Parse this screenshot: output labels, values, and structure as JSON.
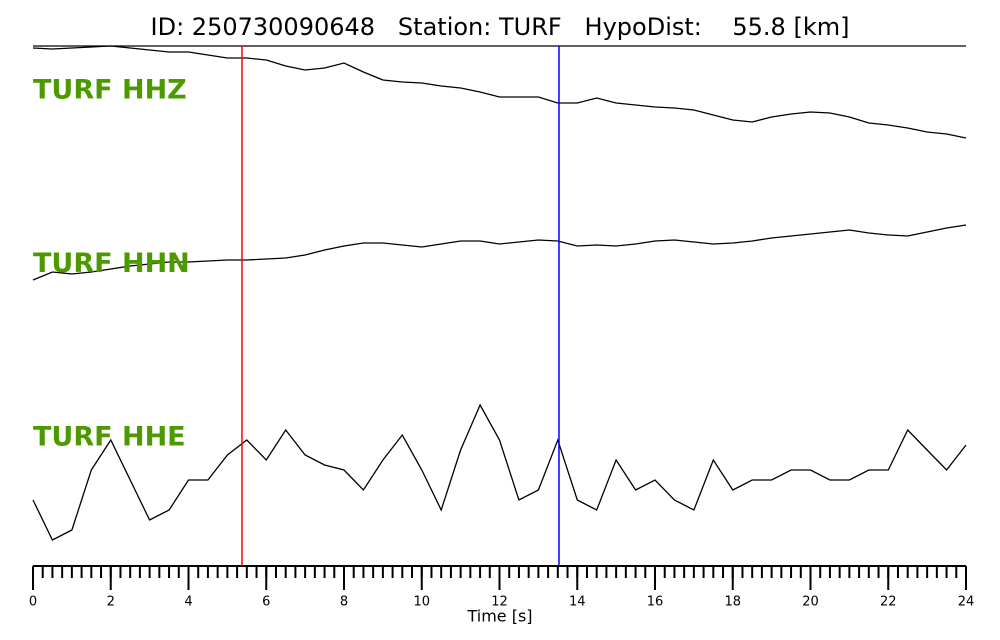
{
  "chart_data": {
    "type": "line",
    "title": "ID: 250730090648   Station: TURF   HypoDist:    55.8 [km]",
    "x_label": "Time [s]",
    "xlim": [
      0,
      24
    ],
    "xticks": [
      0,
      2,
      4,
      6,
      8,
      10,
      12,
      14,
      16,
      18,
      20,
      22,
      24
    ],
    "xminorticks": [
      0,
      0.25,
      0.5,
      0.75,
      1,
      1.25,
      1.5,
      1.75,
      2,
      2.25,
      2.5,
      2.75,
      3,
      3.25,
      3.5,
      3.75,
      4,
      4.25,
      4.5,
      4.75,
      5,
      5.25,
      5.5,
      5.75,
      6,
      6.25,
      6.5,
      6.75,
      7,
      7.25,
      7.5,
      7.75,
      8,
      8.25,
      8.5,
      8.75,
      9,
      9.25,
      9.5,
      9.75,
      10,
      10.25,
      10.5,
      10.75,
      11,
      11.25,
      11.5,
      11.75,
      12,
      12.25,
      12.5,
      12.75,
      13,
      13.25,
      13.5,
      13.75,
      14,
      14.25,
      14.5,
      14.75,
      15,
      15.25,
      15.5,
      15.75,
      16,
      16.25,
      16.5,
      16.75,
      17,
      17.25,
      17.5,
      17.75,
      18,
      18.25,
      18.5,
      18.75,
      19,
      19.25,
      19.5,
      19.75,
      20,
      20.25,
      20.5,
      20.75,
      21,
      21.25,
      21.5,
      21.75,
      22,
      22.25,
      22.5,
      22.75,
      23,
      23.25,
      23.5,
      23.75,
      24
    ],
    "ylim": [
      0,
      520
    ],
    "x": [
      0,
      0.5,
      1,
      1.5,
      2,
      2.5,
      3,
      3.5,
      4,
      4.5,
      5,
      5.5,
      6,
      6.5,
      7,
      7.5,
      8,
      8.5,
      9,
      9.5,
      10,
      10.5,
      11,
      11.5,
      12,
      12.5,
      13,
      13.5,
      14,
      14.5,
      15,
      15.5,
      16,
      16.5,
      17,
      17.5,
      18,
      18.5,
      19,
      19.5,
      20,
      20.5,
      21,
      21.5,
      22,
      22.5,
      23,
      23.5,
      24
    ],
    "series": [
      {
        "name": "TURF HHZ",
        "color": "#000000",
        "values": [
          518,
          517,
          518,
          519,
          520,
          518,
          516,
          514,
          514,
          511,
          508,
          508,
          506,
          500,
          496,
          498,
          503,
          494,
          486,
          484,
          483,
          480,
          478,
          474,
          469,
          469,
          469,
          463,
          463,
          468,
          463,
          461,
          459,
          458,
          456,
          451,
          446,
          444,
          449,
          452,
          454,
          453,
          449,
          443,
          441,
          438,
          434,
          432,
          428
        ]
      },
      {
        "name": "TURF HHN",
        "color": "#000000",
        "values": [
          286,
          294,
          292,
          294,
          297,
          300,
          302,
          304,
          304,
          305,
          306,
          306,
          307,
          308,
          311,
          316,
          320,
          323,
          323,
          321,
          319,
          322,
          325,
          325,
          322,
          324,
          326,
          325,
          320,
          321,
          320,
          322,
          325,
          326,
          324,
          322,
          323,
          325,
          328,
          330,
          332,
          334,
          336,
          333,
          331,
          330,
          334,
          338,
          341
        ]
      },
      {
        "name": "TURF HHE",
        "color": "#000000",
        "values": [
          66,
          26,
          36,
          96,
          126,
          86,
          46,
          56,
          86,
          86,
          111,
          126,
          106,
          136,
          111,
          101,
          96,
          76,
          106,
          131,
          96,
          56,
          116,
          161,
          126,
          66,
          76,
          126,
          66,
          56,
          106,
          76,
          86,
          66,
          56,
          106,
          76,
          86,
          86,
          96,
          96,
          86,
          86,
          96,
          96,
          136,
          116,
          96,
          121
        ]
      }
    ],
    "label_color": "#4c9a00",
    "markers": [
      {
        "value": 5.376,
        "color": "#ff0000"
      },
      {
        "value": 13.53,
        "color": "#0000ff"
      }
    ]
  }
}
